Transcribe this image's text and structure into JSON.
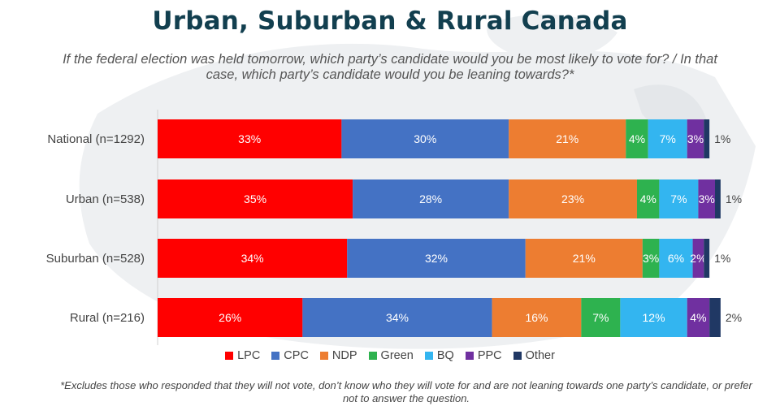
{
  "title": "Urban, Suburban & Rural Canada",
  "subtitle": "If the federal election was held tomorrow, which party’s candidate would you be most likely to vote for? / In that case, which party’s candidate would you be leaning towards?*",
  "footnote": "*Excludes those who responded that they will not vote, don’t know who they will vote for and are not leaning towards one party’s candidate, or prefer not to answer the question.",
  "chart_data": {
    "type": "bar",
    "orientation": "horizontal",
    "stacked": true,
    "categories": [
      "National (n=1292)",
      "Urban (n=538)",
      "Suburban (n=528)",
      "Rural (n=216)"
    ],
    "series": [
      {
        "name": "LPC",
        "color": "#ff0000",
        "values": [
          33,
          35,
          34,
          26
        ]
      },
      {
        "name": "CPC",
        "color": "#4472c4",
        "values": [
          30,
          28,
          32,
          34
        ]
      },
      {
        "name": "NDP",
        "color": "#ed7d31",
        "values": [
          21,
          23,
          21,
          16
        ]
      },
      {
        "name": "Green",
        "color": "#2eb24f",
        "values": [
          4,
          4,
          3,
          7
        ]
      },
      {
        "name": "BQ",
        "color": "#33b5f0",
        "values": [
          7,
          7,
          6,
          12
        ]
      },
      {
        "name": "PPC",
        "color": "#7030a0",
        "values": [
          3,
          3,
          2,
          4
        ]
      },
      {
        "name": "Other",
        "color": "#203864",
        "values": [
          1,
          1,
          1,
          2
        ]
      }
    ],
    "value_suffix": "%",
    "legend_position": "bottom",
    "grid": false
  }
}
